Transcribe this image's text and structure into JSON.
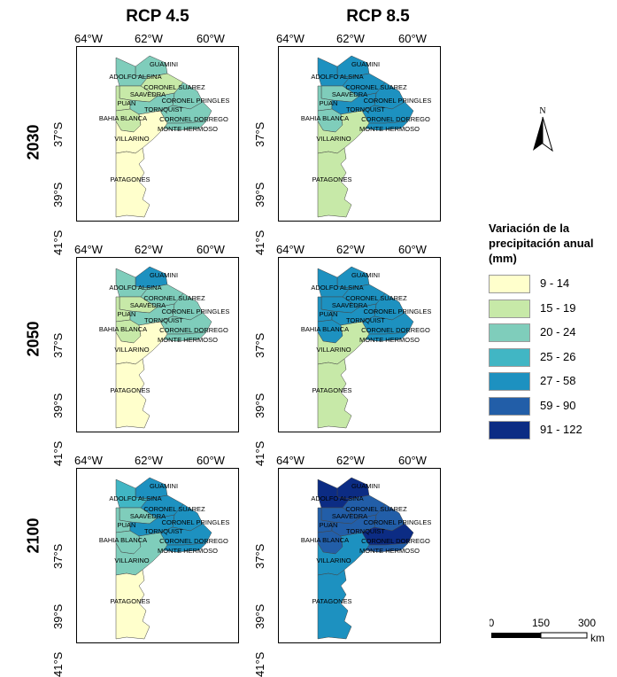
{
  "columns": [
    "RCP 4.5",
    "RCP 8.5"
  ],
  "rows": [
    "2030",
    "2050",
    "2100"
  ],
  "axes": {
    "lon_ticks": [
      "64°W",
      "62°W",
      "60°W"
    ],
    "lat_ticks": [
      "37°S",
      "39°S",
      "41°S"
    ]
  },
  "partidos": [
    "GUAMINI",
    "ADOLFO ALSINA",
    "CORONEL SUAREZ",
    "SAAVEDRA",
    "PUAN",
    "CORONEL PRINGLES",
    "TORNQUIST",
    "BAHIA BLANCA",
    "CORONEL DORREGO",
    "MONTE HERMOSO",
    "VILLARINO",
    "PATAGONES"
  ],
  "legend": {
    "title_lines": [
      "Variación de la",
      "precipitación anual",
      "(mm)"
    ],
    "classes": [
      {
        "label": "9 - 14",
        "color": "#ffffcc"
      },
      {
        "label": "15 - 19",
        "color": "#c7e9a8"
      },
      {
        "label": "20 - 24",
        "color": "#7fcdbb"
      },
      {
        "label": "25 - 26",
        "color": "#41b6c4"
      },
      {
        "label": "27 - 58",
        "color": "#1d91c0"
      },
      {
        "label": "59 - 90",
        "color": "#225ea8"
      },
      {
        "label": "91 - 122",
        "color": "#0c2c84"
      }
    ]
  },
  "north_arrow": {
    "label": "N",
    "icon": "north-arrow-icon"
  },
  "scale_bar": {
    "ticks": [
      "0",
      "150",
      "300"
    ],
    "unit": "km"
  },
  "maps": [
    {
      "row": "2030",
      "col": "RCP 4.5",
      "classes": {
        "GUAMINI": 2,
        "ADOLFO ALSINA": 2,
        "CORONEL SUAREZ": 1,
        "SAAVEDRA": 1,
        "PUAN": 1,
        "CORONEL PRINGLES": 2,
        "TORNQUIST": 2,
        "BAHIA BLANCA": 1,
        "CORONEL DORREGO": 2,
        "MONTE HERMOSO": 2,
        "VILLARINO": 0,
        "PATAGONES": 0
      }
    },
    {
      "row": "2030",
      "col": "RCP 8.5",
      "classes": {
        "GUAMINI": 4,
        "ADOLFO ALSINA": 4,
        "CORONEL SUAREZ": 4,
        "SAAVEDRA": 2,
        "PUAN": 2,
        "CORONEL PRINGLES": 4,
        "TORNQUIST": 4,
        "BAHIA BLANCA": 2,
        "CORONEL DORREGO": 4,
        "MONTE HERMOSO": 4,
        "VILLARINO": 1,
        "PATAGONES": 1
      }
    },
    {
      "row": "2050",
      "col": "RCP 4.5",
      "classes": {
        "GUAMINI": 4,
        "ADOLFO ALSINA": 2,
        "CORONEL SUAREZ": 2,
        "SAAVEDRA": 1,
        "PUAN": 1,
        "CORONEL PRINGLES": 2,
        "TORNQUIST": 2,
        "BAHIA BLANCA": 1,
        "CORONEL DORREGO": 2,
        "MONTE HERMOSO": 2,
        "VILLARINO": 0,
        "PATAGONES": 0
      }
    },
    {
      "row": "2050",
      "col": "RCP 8.5",
      "classes": {
        "GUAMINI": 4,
        "ADOLFO ALSINA": 4,
        "CORONEL SUAREZ": 4,
        "SAAVEDRA": 4,
        "PUAN": 4,
        "CORONEL PRINGLES": 4,
        "TORNQUIST": 4,
        "BAHIA BLANCA": 4,
        "CORONEL DORREGO": 4,
        "MONTE HERMOSO": 4,
        "VILLARINO": 1,
        "PATAGONES": 1
      }
    },
    {
      "row": "2100",
      "col": "RCP 4.5",
      "classes": {
        "GUAMINI": 4,
        "ADOLFO ALSINA": 3,
        "CORONEL SUAREZ": 4,
        "SAAVEDRA": 2,
        "PUAN": 2,
        "CORONEL PRINGLES": 4,
        "TORNQUIST": 4,
        "BAHIA BLANCA": 2,
        "CORONEL DORREGO": 4,
        "MONTE HERMOSO": 4,
        "VILLARINO": 2,
        "PATAGONES": 0
      }
    },
    {
      "row": "2100",
      "col": "RCP 8.5",
      "classes": {
        "GUAMINI": 6,
        "ADOLFO ALSINA": 6,
        "CORONEL SUAREZ": 5,
        "SAAVEDRA": 5,
        "PUAN": 5,
        "CORONEL PRINGLES": 5,
        "TORNQUIST": 5,
        "BAHIA BLANCA": 5,
        "CORONEL DORREGO": 6,
        "MONTE HERMOSO": 5,
        "VILLARINO": 4,
        "PATAGONES": 4
      }
    }
  ]
}
